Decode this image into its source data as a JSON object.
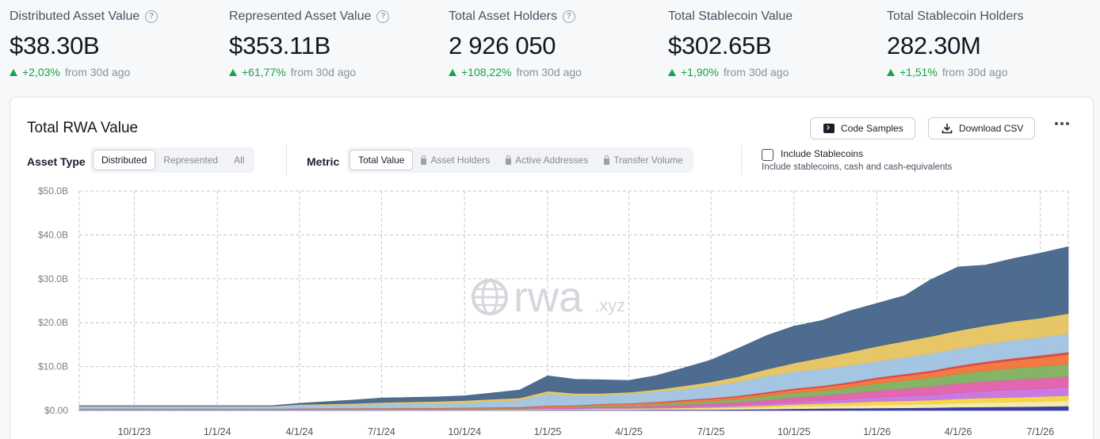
{
  "stats": [
    {
      "label": "Distributed Asset Value",
      "value": "$38.30B",
      "change": "+2,03%",
      "suffix": "from 30d ago",
      "help": true
    },
    {
      "label": "Represented Asset Value",
      "value": "$353.11B",
      "change": "+61,77%",
      "suffix": "from 30d ago",
      "help": true
    },
    {
      "label": "Total Asset Holders",
      "value": "2 926 050",
      "change": "+108,22%",
      "suffix": "from 30d ago",
      "help": true
    },
    {
      "label": "Total Stablecoin Value",
      "value": "$302.65B",
      "change": "+1,90%",
      "suffix": "from 30d ago",
      "help": false
    },
    {
      "label": "Total Stablecoin Holders",
      "value": "282.30M",
      "change": "+1,51%",
      "suffix": "from 30d ago",
      "help": false
    }
  ],
  "card": {
    "title": "Total RWA Value",
    "code_samples": "Code Samples",
    "download_csv": "Download CSV",
    "asset_type_label": "Asset Type",
    "asset_types": [
      "Distributed",
      "Represented",
      "All"
    ],
    "asset_type_selected": "Distributed",
    "metric_label": "Metric",
    "metrics": [
      {
        "label": "Total Value",
        "locked": false
      },
      {
        "label": "Asset Holders",
        "locked": true
      },
      {
        "label": "Active Addresses",
        "locked": true
      },
      {
        "label": "Transfer Volume",
        "locked": true
      }
    ],
    "metric_selected": "Total Value",
    "include_stablecoins_label": "Include Stablecoins",
    "include_stablecoins_checked": false,
    "include_stablecoins_desc": "Include stablecoins, cash and cash-equivalents",
    "watermark": "rwa",
    "watermark_suffix": ".xyz"
  },
  "chart_data": {
    "type": "area",
    "stacked": true,
    "xlabel": "",
    "ylabel": "",
    "y_ticks": [
      "$0.00",
      "$10.0B",
      "$20.0B",
      "$30.0B",
      "$40.0B",
      "$50.0B"
    ],
    "y_range": [
      0,
      50
    ],
    "x_ticks": [
      "10/1/23",
      "1/1/24",
      "4/1/24",
      "7/1/24",
      "10/1/24",
      "1/1/25",
      "4/1/25",
      "7/1/25",
      "10/1/25",
      "1/1/26",
      "4/1/26",
      "7/1/26"
    ],
    "grid": true,
    "x": [
      "8/1/23",
      "10/1/23",
      "1/1/24",
      "3/1/24",
      "4/1/24",
      "6/1/24",
      "7/1/24",
      "9/1/24",
      "10/1/24",
      "12/1/24",
      "1/1/25",
      "2/1/25",
      "3/1/25",
      "4/1/25",
      "5/1/25",
      "6/1/25",
      "7/1/25",
      "8/1/25",
      "9/1/25",
      "10/1/25",
      "11/1/25",
      "12/1/25",
      "1/1/26",
      "2/1/26",
      "3/1/26",
      "4/1/26",
      "5/1/26",
      "6/1/26",
      "7/1/26",
      "8/1/26"
    ],
    "series": [
      {
        "color": "#2b2fa3",
        "values": [
          0.1,
          0.1,
          0.1,
          0.1,
          0.1,
          0.1,
          0.1,
          0.1,
          0.1,
          0.1,
          0.15,
          0.15,
          0.15,
          0.15,
          0.2,
          0.2,
          0.2,
          0.25,
          0.3,
          0.4,
          0.45,
          0.5,
          0.55,
          0.6,
          0.65,
          0.75,
          0.8,
          0.85,
          0.9,
          1.0
        ]
      },
      {
        "color": "#f5e6a8",
        "values": [
          0.1,
          0.1,
          0.1,
          0.1,
          0.1,
          0.1,
          0.1,
          0.1,
          0.1,
          0.1,
          0.15,
          0.15,
          0.2,
          0.2,
          0.2,
          0.25,
          0.3,
          0.35,
          0.4,
          0.5,
          0.55,
          0.6,
          0.7,
          0.75,
          0.8,
          0.9,
          1.0,
          1.05,
          1.1,
          1.2
        ]
      },
      {
        "color": "#f0d43a",
        "values": [
          0.0,
          0.0,
          0.0,
          0.0,
          0.0,
          0.0,
          0.0,
          0.0,
          0.0,
          0.05,
          0.05,
          0.05,
          0.1,
          0.1,
          0.1,
          0.15,
          0.2,
          0.3,
          0.4,
          0.5,
          0.6,
          0.7,
          0.8,
          0.85,
          0.9,
          1.0,
          1.05,
          1.1,
          1.15,
          1.2
        ]
      },
      {
        "color": "#c46fe0",
        "values": [
          0.05,
          0.05,
          0.05,
          0.05,
          0.05,
          0.05,
          0.1,
          0.1,
          0.1,
          0.1,
          0.15,
          0.15,
          0.2,
          0.2,
          0.25,
          0.3,
          0.35,
          0.4,
          0.5,
          0.6,
          0.7,
          0.8,
          1.0,
          1.1,
          1.2,
          1.4,
          1.6,
          1.7,
          1.8,
          1.9
        ]
      },
      {
        "color": "#e05aa8",
        "values": [
          0.0,
          0.0,
          0.0,
          0.0,
          0.05,
          0.05,
          0.05,
          0.05,
          0.1,
          0.1,
          0.1,
          0.15,
          0.2,
          0.25,
          0.3,
          0.4,
          0.5,
          0.6,
          0.8,
          1.0,
          1.1,
          1.3,
          1.5,
          1.7,
          1.9,
          2.1,
          2.2,
          2.3,
          2.4,
          2.5
        ]
      },
      {
        "color": "#7cae5a",
        "values": [
          0.05,
          0.05,
          0.05,
          0.05,
          0.05,
          0.1,
          0.1,
          0.1,
          0.1,
          0.1,
          0.2,
          0.25,
          0.3,
          0.35,
          0.4,
          0.5,
          0.6,
          0.7,
          0.9,
          1.0,
          1.1,
          1.3,
          1.6,
          1.8,
          2.0,
          2.2,
          2.4,
          2.6,
          2.7,
          2.8
        ]
      },
      {
        "color": "#f07033",
        "values": [
          0.05,
          0.05,
          0.05,
          0.05,
          0.05,
          0.05,
          0.05,
          0.1,
          0.1,
          0.1,
          0.2,
          0.2,
          0.25,
          0.3,
          0.35,
          0.4,
          0.45,
          0.5,
          0.6,
          0.7,
          0.8,
          0.9,
          1.0,
          1.1,
          1.2,
          1.4,
          1.6,
          1.8,
          2.0,
          2.2
        ]
      },
      {
        "color": "#dc3b3b",
        "values": [
          0.05,
          0.05,
          0.05,
          0.05,
          0.05,
          0.05,
          0.05,
          0.05,
          0.05,
          0.1,
          0.1,
          0.1,
          0.1,
          0.1,
          0.15,
          0.2,
          0.2,
          0.25,
          0.3,
          0.3,
          0.3,
          0.35,
          0.35,
          0.4,
          0.4,
          0.45,
          0.45,
          0.5,
          0.5,
          0.5
        ]
      },
      {
        "color": "#9cc1e0",
        "values": [
          0.5,
          0.5,
          0.5,
          0.5,
          0.7,
          0.8,
          0.9,
          1.0,
          1.1,
          1.6,
          2.7,
          2.2,
          2.0,
          2.1,
          2.3,
          2.5,
          2.8,
          3.2,
          3.6,
          3.8,
          3.9,
          3.8,
          3.7,
          3.8,
          3.9,
          3.9,
          4.0,
          4.1,
          4.1,
          4.2
        ]
      },
      {
        "color": "#e4c159",
        "values": [
          0.1,
          0.1,
          0.1,
          0.1,
          0.2,
          0.3,
          0.4,
          0.5,
          0.5,
          0.5,
          0.6,
          0.5,
          0.4,
          0.4,
          0.5,
          0.7,
          0.9,
          1.2,
          1.6,
          2.0,
          2.5,
          3.0,
          3.4,
          3.7,
          3.9,
          4.1,
          4.2,
          4.3,
          4.4,
          4.6
        ]
      },
      {
        "color": "#3e5f87",
        "values": [
          0.1,
          0.1,
          0.1,
          0.1,
          0.3,
          0.8,
          1.0,
          1.0,
          1.1,
          1.8,
          3.5,
          3.2,
          3.1,
          2.7,
          3.2,
          4.1,
          5.0,
          6.5,
          7.7,
          8.4,
          8.5,
          9.4,
          9.8,
          10.4,
          12.9,
          14.5,
          13.8,
          14.3,
          14.8,
          15.2
        ]
      }
    ]
  }
}
